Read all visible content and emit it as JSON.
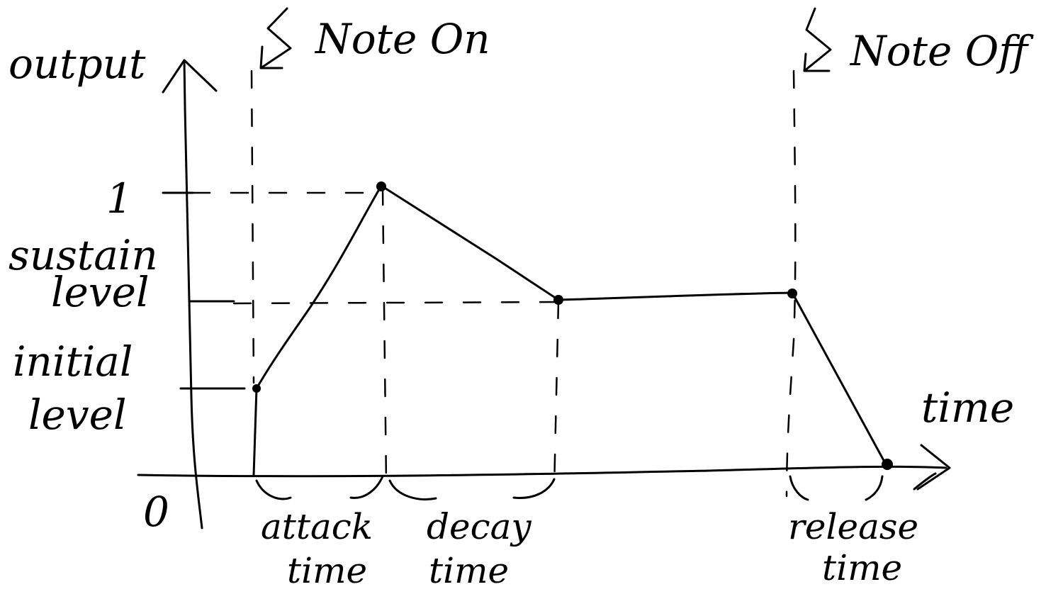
{
  "diagram": {
    "labels": {
      "y_axis": "output",
      "x_axis": "time",
      "origin": "0",
      "one": "1",
      "sustain_1": "sustain",
      "sustain_2": "level",
      "initial_1": "initial",
      "initial_2": "level",
      "note_on": "Note On",
      "note_off": "Note Off",
      "attack_1": "attack",
      "attack_2": "time",
      "decay_1": "decay",
      "decay_2": "time",
      "release_1": "release",
      "release_2": "time"
    },
    "envelope": {
      "initial_level": 0.3,
      "peak_level": 1,
      "sustain_level": 0.62,
      "end_level": 0
    },
    "ink_color": "#000000",
    "background_color": "#ffffff"
  }
}
